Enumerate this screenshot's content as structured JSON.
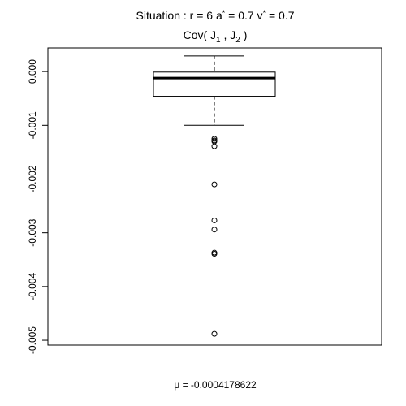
{
  "chart_data": {
    "type": "boxplot",
    "title": {
      "prefix": "Situation :  r = 6 a",
      "a_sup": "*",
      "middle": " = 0.7 v",
      "v_sup": "*",
      "suffix": " = 0.7"
    },
    "subtitle": {
      "prefix": "Cov( J",
      "sub1": "1",
      "middle": " , J",
      "sub2": "2",
      "suffix": " )"
    },
    "footer_label": "μ = -0.0004178622",
    "ylim": [
      -0.00509,
      0.00044
    ],
    "yticks": [
      {
        "value": 0.0,
        "label": "0.000"
      },
      {
        "value": -0.001,
        "label": "-0.001"
      },
      {
        "value": -0.002,
        "label": "-0.002"
      },
      {
        "value": -0.003,
        "label": "-0.003"
      },
      {
        "value": -0.004,
        "label": "-0.004"
      },
      {
        "value": -0.005,
        "label": "-0.005"
      }
    ],
    "box": {
      "whisker_high": 0.00029,
      "q3": -1e-05,
      "median": -0.00012,
      "q1": -0.00046,
      "whisker_low": -0.001
    },
    "outliers": [
      -0.00125,
      -0.00128,
      -0.0013,
      -0.00139,
      -0.0021,
      -0.00277,
      -0.00294,
      -0.00337,
      -0.00339,
      -0.00488
    ],
    "grid": false,
    "legend": "none"
  }
}
